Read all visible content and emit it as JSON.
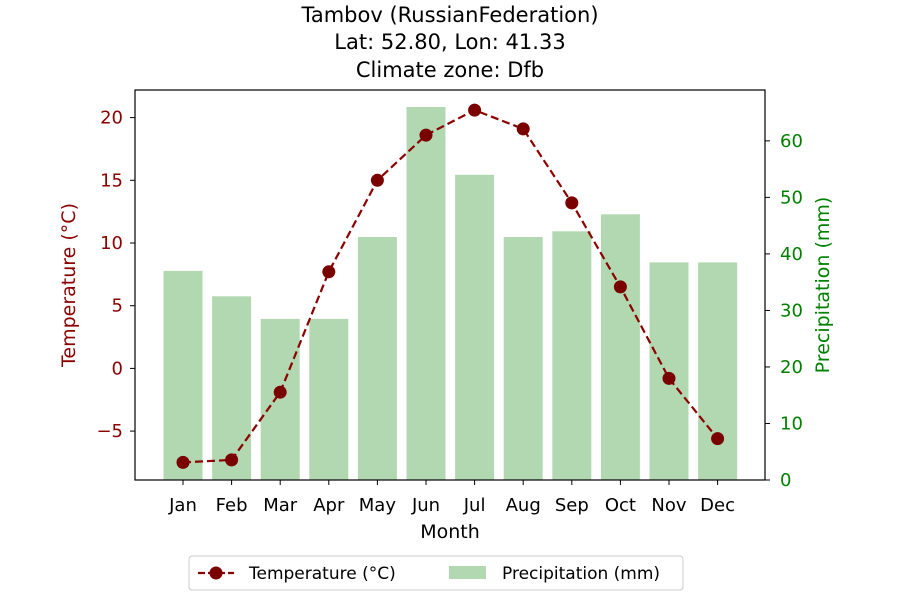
{
  "chart_data": {
    "type": "bar+line",
    "title_lines": [
      "Tambov (RussianFederation)",
      "Lat: 52.80, Lon: 41.33",
      "Climate zone: Dfb"
    ],
    "xlabel": "Month",
    "ylabel_left": "Temperature (°C)",
    "ylabel_right": "Precipitation (mm)",
    "categories": [
      "Jan",
      "Feb",
      "Mar",
      "Apr",
      "May",
      "Jun",
      "Jul",
      "Aug",
      "Sep",
      "Oct",
      "Nov",
      "Dec"
    ],
    "temperature": {
      "name": "Temperature (°C)",
      "color": "#8b0000",
      "values": [
        -7.5,
        -7.3,
        -1.9,
        7.7,
        15.0,
        18.6,
        20.6,
        19.1,
        13.2,
        6.5,
        -0.8,
        -5.6
      ]
    },
    "precipitation": {
      "name": "Precipitation (mm)",
      "color": "#b2d8b2",
      "values": [
        37,
        32.5,
        28.5,
        28.5,
        43,
        66,
        54,
        43,
        44,
        47,
        38.5,
        38.5
      ]
    },
    "ylim_left": [
      -8.9,
      22.2
    ],
    "ylim_right": [
      0,
      69
    ],
    "yticks_left": [
      -5,
      0,
      5,
      10,
      15,
      20
    ],
    "yticks_right": [
      0,
      10,
      20,
      30,
      40,
      50,
      60
    ],
    "ytick_labels_left": [
      "−5",
      "0",
      "5",
      "10",
      "15",
      "20"
    ],
    "ytick_labels_right": [
      "0",
      "10",
      "20",
      "30",
      "40",
      "50",
      "60"
    ],
    "left_axis_color": "#8b0000",
    "right_axis_color": "#008000",
    "legend_position": "bottom-center"
  }
}
